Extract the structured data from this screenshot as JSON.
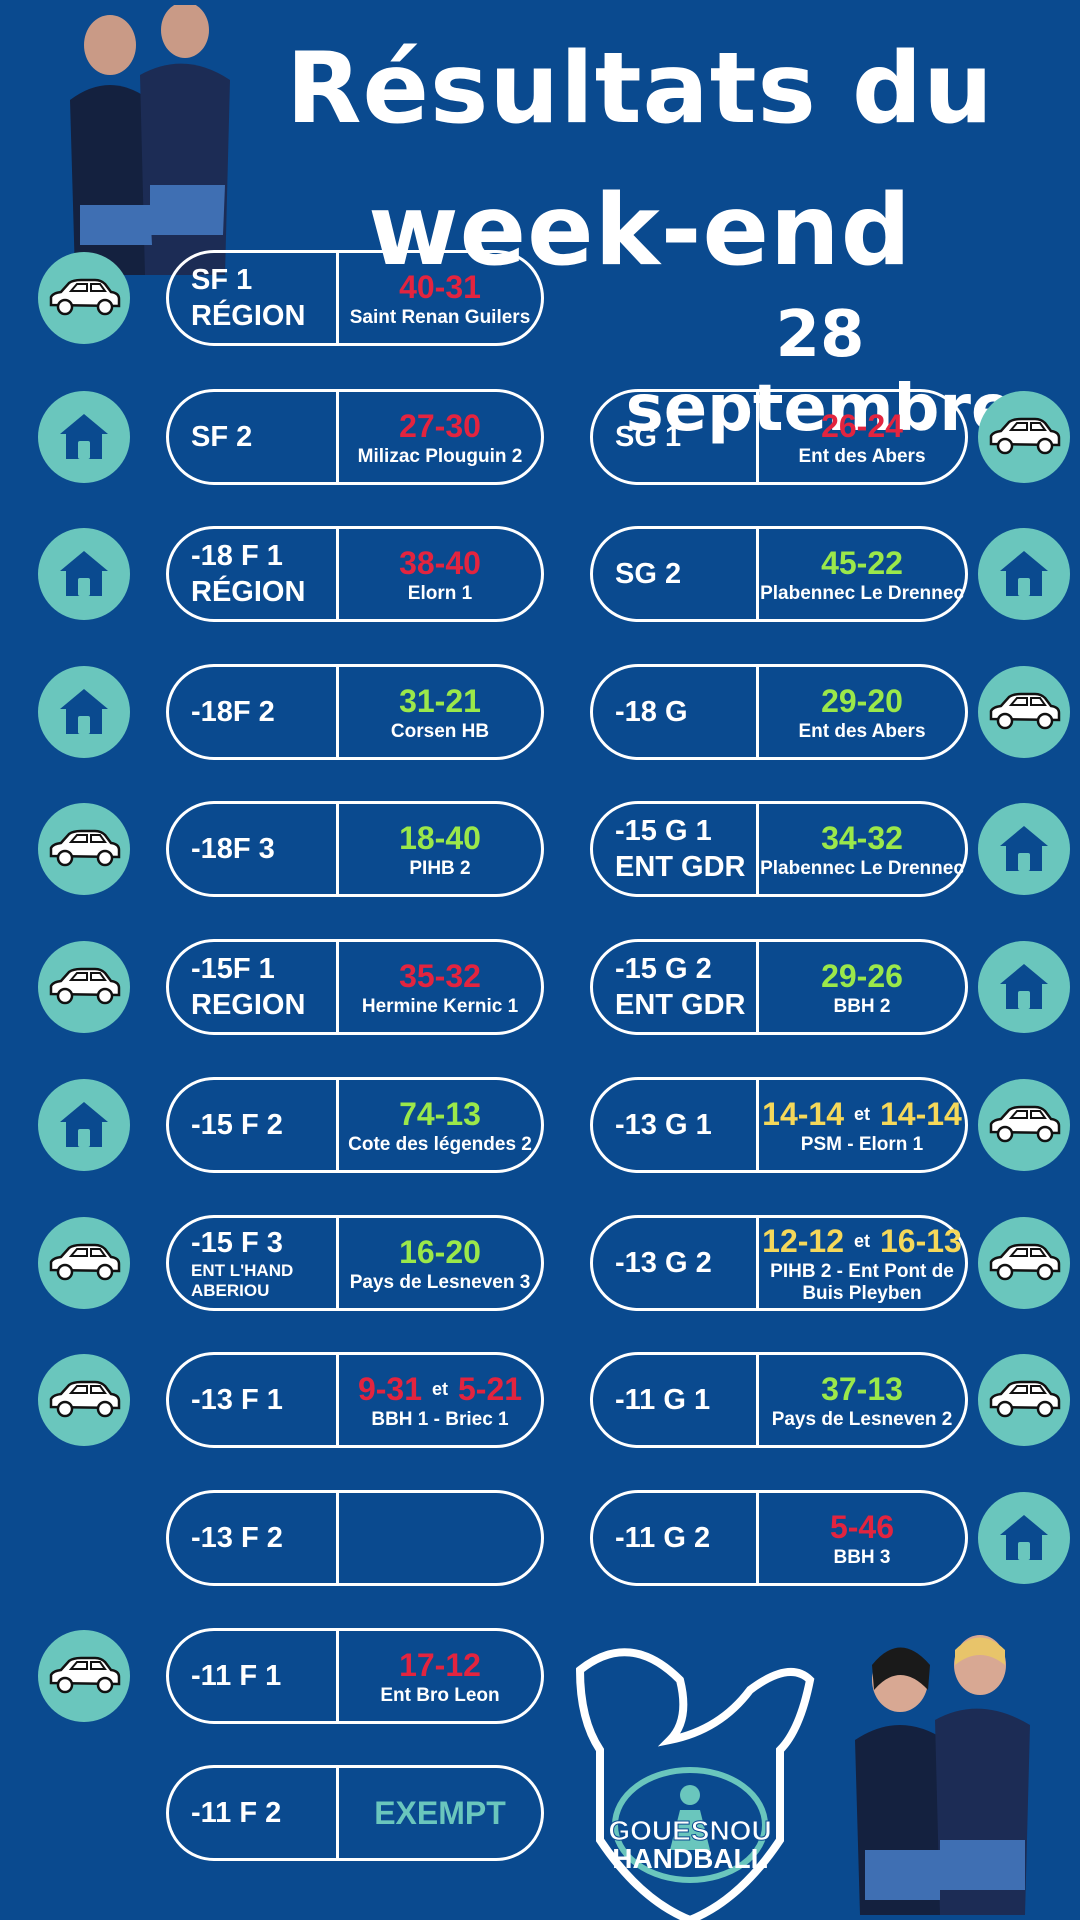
{
  "header": {
    "title_line1": "Résultats du",
    "title_line2": "week-end",
    "date": "28 septembre"
  },
  "logo": {
    "line1": "GOUESNOU",
    "line2": "HANDBALL"
  },
  "left_matches": [
    {
      "team": "SF 1",
      "team2": "RÉGION",
      "score": "40-31",
      "score_color": "red",
      "opponent": "Saint Renan Guilers",
      "icon": "car-icon"
    },
    {
      "team": "SF 2",
      "score": "27-30",
      "score_color": "red",
      "opponent": "Milizac Plouguin 2",
      "icon": "home-icon"
    },
    {
      "team": "-18 F 1",
      "team2": "RÉGION",
      "score": "38-40",
      "score_color": "red",
      "opponent": "Elorn 1",
      "icon": "home-icon"
    },
    {
      "team": "-18F 2",
      "score": "31-21",
      "score_color": "green",
      "opponent": "Corsen HB",
      "icon": "home-icon"
    },
    {
      "team": "-18F 3",
      "score": "18-40",
      "score_color": "green",
      "opponent": "PIHB 2",
      "icon": "car-icon"
    },
    {
      "team": "-15F 1",
      "team2": "REGION",
      "score": "35-32",
      "score_color": "red",
      "opponent": "Hermine Kernic 1",
      "icon": "car-icon"
    },
    {
      "team": "-15 F 2",
      "score": "74-13",
      "score_color": "green",
      "opponent": "Cote des légendes 2",
      "icon": "home-icon"
    },
    {
      "team": "-15 F 3",
      "sub1": "ENT L'HAND",
      "sub2": "ABERIOU",
      "score": "16-20",
      "score_color": "green",
      "opponent": "Pays de Lesneven 3",
      "icon": "car-icon"
    },
    {
      "team": "-13 F  1",
      "score": "9-31",
      "score_b": "5-21",
      "et": "et",
      "score_color": "red",
      "opponent": "BBH 1 - Briec 1",
      "icon": "car-icon"
    },
    {
      "team": "-13 F  2",
      "score": "",
      "score_color": "red",
      "opponent": "",
      "icon": ""
    },
    {
      "team": "-11 F  1",
      "score": "17-12",
      "score_color": "red",
      "opponent": "Ent Bro Leon",
      "icon": "car-icon"
    },
    {
      "team": "-11 F  2",
      "score": "EXEMPT",
      "score_color": "teal",
      "opponent": "",
      "icon": ""
    }
  ],
  "right_matches": [
    {
      "team": "SG 1",
      "score": "26-24",
      "score_color": "red",
      "opponent": "Ent des Abers",
      "icon": "car-icon"
    },
    {
      "team": "SG 2",
      "score": "45-22",
      "score_color": "green",
      "opponent": "Plabennec Le Drennec",
      "icon": "home-icon"
    },
    {
      "team": "-18 G",
      "score": "29-20",
      "score_color": "green",
      "opponent": "Ent des Abers",
      "icon": "car-icon"
    },
    {
      "team": "-15 G 1",
      "team2": "ENT GDR",
      "score": "34-32",
      "score_color": "green",
      "opponent": "Plabennec Le Drennec",
      "icon": "home-icon"
    },
    {
      "team": "-15 G 2",
      "team2": "ENT GDR",
      "score": "29-26",
      "score_color": "green",
      "opponent": "BBH 2",
      "icon": "home-icon"
    },
    {
      "team": "-13 G 1",
      "score": "14-14",
      "score_b": "14-14",
      "et": "et",
      "score_color": "yellow",
      "opponent": "PSM - Elorn 1",
      "icon": "car-icon"
    },
    {
      "team": "-13 G 2",
      "score": "12-12",
      "score_b": "16-13",
      "et": "et",
      "score_color": "yellow",
      "opponent": "PIHB 2 - Ent Pont de Buis Pleyben",
      "icon": "car-icon"
    },
    {
      "team": "-11 G  1",
      "score": "37-13",
      "score_color": "green",
      "opponent": "Pays de Lesneven 2",
      "icon": "car-icon"
    },
    {
      "team": "-11 G  2",
      "score": "5-46",
      "score_color": "red",
      "opponent": "BBH 3",
      "icon": "home-icon"
    }
  ],
  "colors": {
    "background": "#0a4a8f",
    "badge": "#6ac6bd",
    "loss": "#e3243f",
    "win": "#9be84a",
    "draw": "#f5d85a"
  }
}
